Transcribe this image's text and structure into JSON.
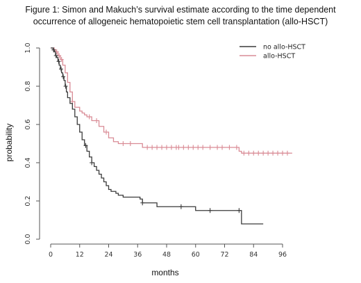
{
  "title_lines": [
    "Figure 1: Simon and Makuch’s survival estimate according to the time dependent",
    "occurrence of allogeneic hematopoietic stem cell transplantation (allo-HSCT)"
  ],
  "chart_data": {
    "type": "line",
    "title": "Figure 1: Simon and Makuch’s survival estimate according to the time dependent occurrence of allogeneic hematopoietic stem cell transplantation (allo-HSCT)",
    "xlabel": "months",
    "ylabel": "probability",
    "xlim": [
      -2,
      100
    ],
    "ylim": [
      0,
      1.0
    ],
    "x_ticks": [
      0,
      12,
      24,
      36,
      48,
      60,
      72,
      84,
      96
    ],
    "y_ticks": [
      0.0,
      0.2,
      0.4,
      0.6,
      0.8,
      1.0
    ],
    "y_tick_labels": [
      "0.0",
      "0.2",
      "0.4",
      "0.6",
      "0.8",
      "1.0"
    ],
    "legend_position": "top-right",
    "grid": false,
    "series": [
      {
        "name": "no allo-HSCT",
        "color": "#3a3a3a",
        "steps": [
          [
            0,
            1.0
          ],
          [
            1,
            0.99
          ],
          [
            1.5,
            0.98
          ],
          [
            2,
            0.96
          ],
          [
            2.5,
            0.95
          ],
          [
            3,
            0.93
          ],
          [
            3.5,
            0.91
          ],
          [
            4,
            0.89
          ],
          [
            4.5,
            0.87
          ],
          [
            5,
            0.85
          ],
          [
            5.5,
            0.83
          ],
          [
            6,
            0.8
          ],
          [
            6.5,
            0.77
          ],
          [
            7,
            0.74
          ],
          [
            8,
            0.71
          ],
          [
            9,
            0.68
          ],
          [
            10,
            0.64
          ],
          [
            11,
            0.6
          ],
          [
            12,
            0.56
          ],
          [
            13,
            0.52
          ],
          [
            14,
            0.49
          ],
          [
            15,
            0.46
          ],
          [
            16,
            0.43
          ],
          [
            17,
            0.4
          ],
          [
            18,
            0.38
          ],
          [
            19,
            0.36
          ],
          [
            20,
            0.34
          ],
          [
            21,
            0.32
          ],
          [
            22,
            0.3
          ],
          [
            23,
            0.28
          ],
          [
            24,
            0.26
          ],
          [
            25,
            0.25
          ],
          [
            27,
            0.24
          ],
          [
            28,
            0.23
          ],
          [
            30,
            0.22
          ],
          [
            37,
            0.21
          ],
          [
            38,
            0.19
          ],
          [
            44,
            0.17
          ],
          [
            60,
            0.15
          ],
          [
            79,
            0.08
          ],
          [
            88,
            0.08
          ]
        ],
        "censor_x": [
          1.2,
          2.2,
          3.3,
          4.3,
          5.2,
          6.2,
          14.5,
          17,
          38,
          54,
          66,
          78
        ]
      },
      {
        "name": "allo-HSCT",
        "color": "#d98b95",
        "steps": [
          [
            0,
            1.0
          ],
          [
            1,
            0.99
          ],
          [
            2,
            0.98
          ],
          [
            3,
            0.96
          ],
          [
            4,
            0.94
          ],
          [
            5,
            0.91
          ],
          [
            6,
            0.87
          ],
          [
            7,
            0.82
          ],
          [
            8,
            0.77
          ],
          [
            9,
            0.72
          ],
          [
            10,
            0.69
          ],
          [
            12,
            0.67
          ],
          [
            13,
            0.66
          ],
          [
            14,
            0.65
          ],
          [
            15,
            0.64
          ],
          [
            17,
            0.62
          ],
          [
            20,
            0.59
          ],
          [
            22,
            0.56
          ],
          [
            24,
            0.53
          ],
          [
            26,
            0.51
          ],
          [
            28,
            0.5
          ],
          [
            38,
            0.48
          ],
          [
            78,
            0.46
          ],
          [
            79,
            0.45
          ],
          [
            100,
            0.45
          ]
        ],
        "censor_x": [
          1.5,
          2.5,
          3.5,
          4.5,
          9,
          16,
          19,
          23,
          30,
          33,
          40,
          42,
          44,
          46,
          48,
          50,
          52,
          53,
          55,
          57,
          59,
          61,
          63,
          66,
          69,
          71,
          74,
          77,
          80,
          82,
          84,
          86,
          88,
          90,
          92,
          94,
          96,
          98
        ]
      }
    ]
  }
}
